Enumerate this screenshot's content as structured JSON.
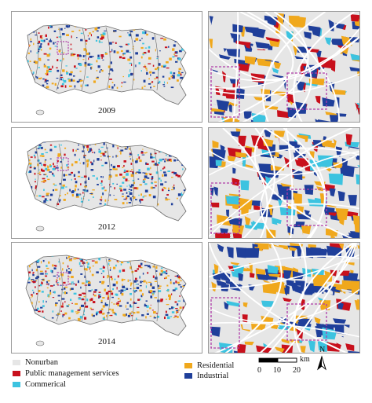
{
  "panels": [
    {
      "year": "2009"
    },
    {
      "year": "2012"
    },
    {
      "year": "2014"
    }
  ],
  "colors": {
    "nonurban": "#e6e6e6",
    "public": "#c8101c",
    "commercial": "#3cc3e0",
    "residential": "#f0a81c",
    "industrial": "#1f3f9a",
    "boundary": "#6b6b6b",
    "highlight": "#b03ca8"
  },
  "legend": {
    "items": [
      {
        "label": "Nonurban",
        "color": "#e6e6e6"
      },
      {
        "label": "Public management services",
        "color": "#c8101c"
      },
      {
        "label": "Commerical",
        "color": "#3cc3e0"
      },
      {
        "label": "Residential",
        "color": "#f0a81c"
      },
      {
        "label": "Industrial",
        "color": "#1f3f9a"
      }
    ]
  },
  "scalebar": {
    "unit": "km",
    "ticks": [
      "0",
      "10",
      "20"
    ],
    "north": "N"
  }
}
